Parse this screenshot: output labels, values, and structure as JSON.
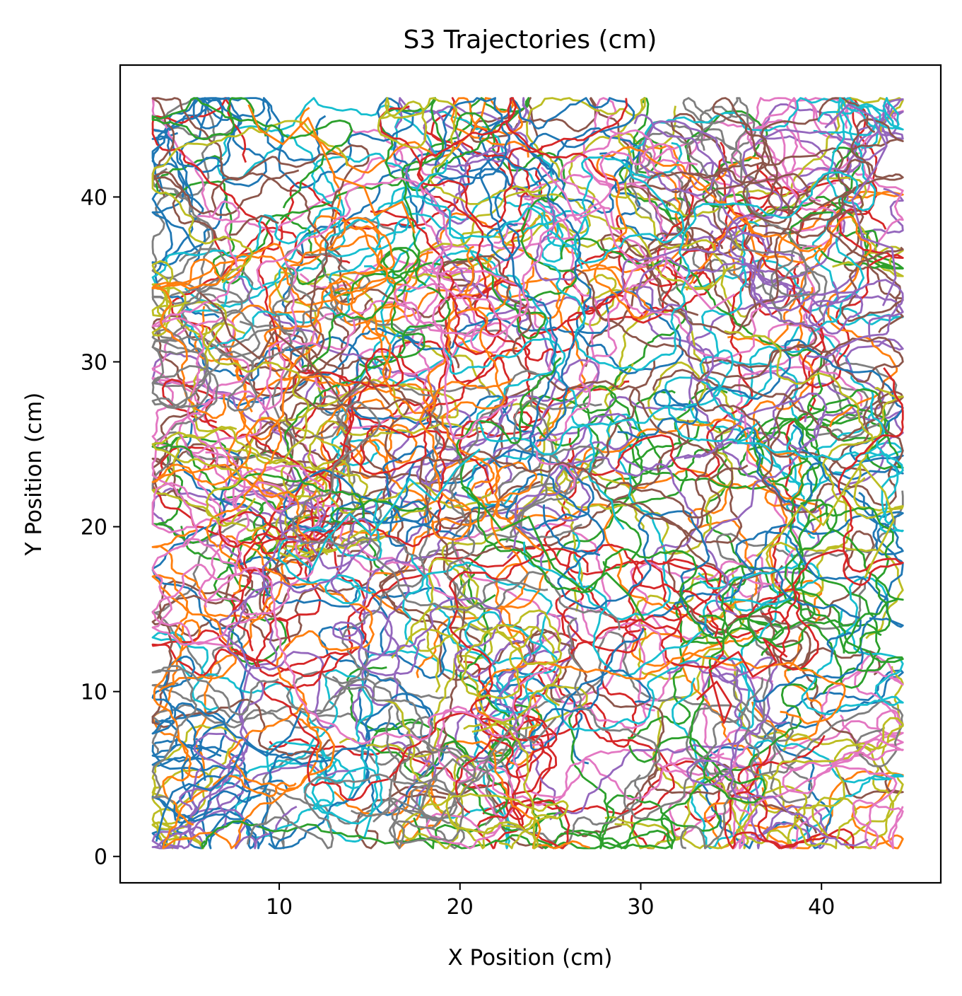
{
  "chart_data": {
    "type": "line",
    "title": "S3 Trajectories (cm)",
    "xlabel": "X Position (cm)",
    "ylabel": "Y Position (cm)",
    "xlim": [
      1.2,
      46.6
    ],
    "ylim": [
      -1.6,
      48.0
    ],
    "xticks": [
      10,
      20,
      30,
      40
    ],
    "yticks": [
      0,
      10,
      20,
      30,
      40
    ],
    "x_data_range": [
      3.0,
      44.5
    ],
    "y_data_range": [
      0.5,
      46.0
    ],
    "grid": false,
    "legend": "none",
    "num_trajectories_estimate": 300,
    "palette": [
      "#1f77b4",
      "#ff7f0e",
      "#2ca02c",
      "#d62728",
      "#9467bd",
      "#8c564b",
      "#e377c2",
      "#7f7f7f",
      "#bcbd22",
      "#17becf"
    ],
    "series": [
      {
        "x": [
          3.2,
          3.6,
          4.1,
          5.0,
          6.2,
          7.4,
          8.1,
          9.3,
          10.6,
          11.2
        ],
        "y": [
          0.9,
          2.6,
          3.9,
          4.4,
          4.0,
          5.2,
          6.9,
          6.1,
          7.3,
          8.8
        ]
      },
      {
        "x": [
          8.3,
          8.9,
          10.2,
          11.6,
          12.4,
          13.1,
          14.7,
          15.3,
          16.8,
          17.5
        ],
        "y": [
          45.6,
          44.1,
          43.2,
          44.8,
          42.9,
          41.2,
          40.6,
          38.9,
          39.7,
          37.8
        ]
      },
      {
        "x": [
          20.1,
          21.4,
          22.3,
          23.8,
          24.6,
          25.2,
          26.9,
          28.1,
          29.4,
          30.2
        ],
        "y": [
          22.4,
          21.1,
          19.8,
          20.6,
          18.7,
          17.5,
          16.1,
          17.2,
          15.8,
          14.3
        ]
      },
      {
        "x": [
          33.1,
          34.2,
          35.0,
          34.6,
          33.8,
          35.4,
          36.2,
          37.5,
          36.8,
          38.1
        ],
        "y": [
          9.5,
          10.6,
          9.2,
          8.1,
          11.3,
          12.4,
          10.9,
          11.8,
          13.2,
          12.1
        ]
      },
      {
        "x": [
          40.2,
          41.5,
          42.8,
          43.6,
          42.9,
          41.7,
          42.3,
          43.9,
          44.1,
          43.4
        ],
        "y": [
          44.2,
          45.6,
          44.9,
          43.1,
          41.6,
          39.8,
          37.5,
          36.9,
          35.1,
          33.4
        ]
      },
      {
        "x": [
          5.6,
          6.8,
          7.3,
          8.9,
          9.7,
          11.2,
          12.6,
          13.4,
          14.8,
          16.1
        ],
        "y": [
          34.2,
          33.1,
          31.6,
          30.2,
          31.8,
          30.5,
          28.9,
          27.6,
          29.1,
          27.4
        ]
      },
      {
        "x": [
          24.5,
          25.8,
          26.4,
          27.9,
          28.6,
          29.8,
          31.2,
          32.5,
          33.9,
          35.2
        ],
        "y": [
          41.8,
          40.2,
          38.6,
          39.4,
          37.1,
          35.8,
          36.4,
          34.9,
          33.2,
          34.1
        ]
      },
      {
        "x": [
          15.2,
          16.5,
          17.8,
          18.4,
          19.6,
          20.9,
          21.7,
          22.8,
          24.1,
          25.3
        ],
        "y": [
          2.1,
          3.4,
          2.8,
          4.6,
          5.9,
          4.7,
          6.2,
          7.8,
          6.9,
          8.4
        ]
      },
      {
        "x": [
          36.4,
          37.8,
          38.9,
          40.1,
          41.4,
          42.2,
          43.5,
          44.0,
          43.2,
          42.4
        ],
        "y": [
          18.2,
          19.6,
          21.3,
          20.1,
          22.5,
          23.8,
          22.1,
          20.4,
          18.7,
          16.9
        ]
      },
      {
        "x": [
          10.4,
          11.8,
          12.6,
          13.9,
          15.1,
          16.4,
          17.2,
          18.6,
          19.8,
          21.1
        ],
        "y": [
          18.6,
          17.4,
          19.2,
          20.8,
          19.5,
          21.4,
          22.9,
          21.6,
          23.5,
          24.7
        ]
      }
    ]
  }
}
